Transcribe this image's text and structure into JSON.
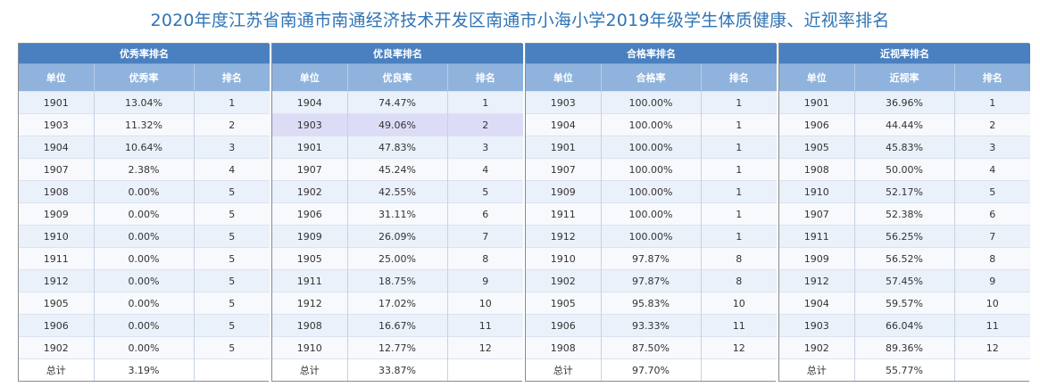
{
  "title": "2020年度江苏省南通市南通经济技术开发区南通市小海小学2019年级学生体质健康、近视率排名",
  "tables": [
    {
      "heading": "优秀率排名",
      "columns": [
        "单位",
        "优秀率",
        "排名"
      ],
      "rows": [
        [
          "1901",
          "13.04%",
          "1"
        ],
        [
          "1903",
          "11.32%",
          "2"
        ],
        [
          "1904",
          "10.64%",
          "3"
        ],
        [
          "1907",
          "2.38%",
          "4"
        ],
        [
          "1908",
          "0.00%",
          "5"
        ],
        [
          "1909",
          "0.00%",
          "5"
        ],
        [
          "1910",
          "0.00%",
          "5"
        ],
        [
          "1911",
          "0.00%",
          "5"
        ],
        [
          "1912",
          "0.00%",
          "5"
        ],
        [
          "1905",
          "0.00%",
          "5"
        ],
        [
          "1906",
          "0.00%",
          "5"
        ],
        [
          "1902",
          "0.00%",
          "5"
        ]
      ],
      "total": [
        "总计",
        "3.19%",
        ""
      ]
    },
    {
      "heading": "优良率排名",
      "columns": [
        "单位",
        "优良率",
        "排名"
      ],
      "rows": [
        [
          "1904",
          "74.47%",
          "1"
        ],
        [
          "1903",
          "49.06%",
          "2"
        ],
        [
          "1901",
          "47.83%",
          "3"
        ],
        [
          "1907",
          "45.24%",
          "4"
        ],
        [
          "1902",
          "42.55%",
          "5"
        ],
        [
          "1906",
          "31.11%",
          "6"
        ],
        [
          "1909",
          "26.09%",
          "7"
        ],
        [
          "1905",
          "25.00%",
          "8"
        ],
        [
          "1911",
          "18.75%",
          "9"
        ],
        [
          "1912",
          "17.02%",
          "10"
        ],
        [
          "1908",
          "16.67%",
          "11"
        ],
        [
          "1910",
          "12.77%",
          "12"
        ]
      ],
      "total": [
        "总计",
        "33.87%",
        ""
      ],
      "highlight_row": 1
    },
    {
      "heading": "合格率排名",
      "columns": [
        "单位",
        "合格率",
        "排名"
      ],
      "rows": [
        [
          "1903",
          "100.00%",
          "1"
        ],
        [
          "1904",
          "100.00%",
          "1"
        ],
        [
          "1901",
          "100.00%",
          "1"
        ],
        [
          "1907",
          "100.00%",
          "1"
        ],
        [
          "1909",
          "100.00%",
          "1"
        ],
        [
          "1911",
          "100.00%",
          "1"
        ],
        [
          "1912",
          "100.00%",
          "1"
        ],
        [
          "1910",
          "97.87%",
          "8"
        ],
        [
          "1902",
          "97.87%",
          "8"
        ],
        [
          "1905",
          "95.83%",
          "10"
        ],
        [
          "1906",
          "93.33%",
          "11"
        ],
        [
          "1908",
          "87.50%",
          "12"
        ]
      ],
      "total": [
        "总计",
        "97.70%",
        ""
      ]
    },
    {
      "heading": "近视率排名",
      "columns": [
        "单位",
        "近视率",
        "排名"
      ],
      "rows": [
        [
          "1901",
          "36.96%",
          "1"
        ],
        [
          "1906",
          "44.44%",
          "2"
        ],
        [
          "1905",
          "45.83%",
          "3"
        ],
        [
          "1908",
          "50.00%",
          "4"
        ],
        [
          "1910",
          "52.17%",
          "5"
        ],
        [
          "1907",
          "52.38%",
          "6"
        ],
        [
          "1911",
          "56.25%",
          "7"
        ],
        [
          "1909",
          "56.52%",
          "8"
        ],
        [
          "1912",
          "57.45%",
          "9"
        ],
        [
          "1904",
          "59.57%",
          "10"
        ],
        [
          "1903",
          "66.04%",
          "11"
        ],
        [
          "1902",
          "89.36%",
          "12"
        ]
      ],
      "total": [
        "总计",
        "55.77%",
        ""
      ]
    }
  ]
}
